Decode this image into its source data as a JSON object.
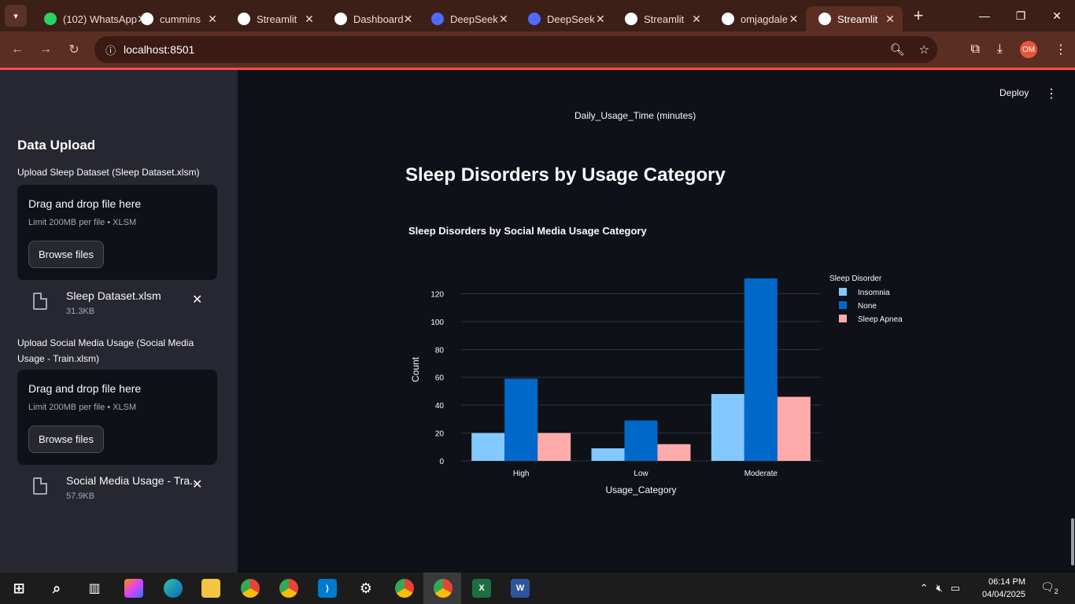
{
  "browser": {
    "tabs": [
      {
        "title": "(102) WhatsApp",
        "icon": "whatsapp-icon",
        "color": "#25d366"
      },
      {
        "title": "cummins",
        "icon": "github-icon",
        "color": "#ffffff"
      },
      {
        "title": "Streamlit",
        "icon": "streamlit-icon",
        "color": "#ffffff"
      },
      {
        "title": "Dashboard",
        "icon": "openai-icon",
        "color": "#ffffff"
      },
      {
        "title": "DeepSeek",
        "icon": "deepseek-icon",
        "color": "#4d6bfe"
      },
      {
        "title": "DeepSeek",
        "icon": "deepseek-icon",
        "color": "#4d6bfe"
      },
      {
        "title": "Streamlit",
        "icon": "streamlit-icon",
        "color": "#ffffff"
      },
      {
        "title": "omjagdale",
        "icon": "github-icon",
        "color": "#ffffff"
      },
      {
        "title": "Streamlit",
        "icon": "streamlit-icon",
        "color": "#ffffff",
        "active": true
      }
    ],
    "url": "localhost:8501",
    "profile_initials": "OM"
  },
  "sidebar": {
    "title": "Data Upload",
    "uploaders": [
      {
        "label": "Upload Sleep Dataset (Sleep Dataset.xlsm)",
        "drop_text": "Drag and drop file here",
        "limit_text": "Limit 200MB per file • XLSM",
        "button": "Browse files",
        "file_name": "Sleep Dataset.xlsm",
        "file_size": "31.3KB"
      },
      {
        "label": "Upload Social Media Usage (Social Media Usage - Train.xlsm)",
        "drop_text": "Drag and drop file here",
        "limit_text": "Limit 200MB per file • XLSM",
        "button": "Browse files",
        "file_name": "Social Media Usage - Tra...",
        "file_size": "57.9KB"
      }
    ]
  },
  "main": {
    "deploy_label": "Deploy",
    "previous_axis_caption": "Daily_Usage_Time (minutes)",
    "section_title": "Sleep Disorders by Usage Category"
  },
  "chart_data": {
    "type": "bar",
    "title": "Sleep Disorders by Social Media Usage Category",
    "xlabel": "Usage_Category",
    "ylabel": "Count",
    "categories": [
      "High",
      "Low",
      "Moderate"
    ],
    "series": [
      {
        "name": "Insomnia",
        "values": [
          20,
          9,
          48
        ],
        "color": "#83c9ff"
      },
      {
        "name": "None",
        "values": [
          59,
          29,
          131
        ],
        "color": "#0068c9"
      },
      {
        "name": "Sleep Apnea",
        "values": [
          20,
          12,
          46
        ],
        "color": "#ffabab"
      }
    ],
    "ylim": [
      0,
      131
    ],
    "yticks": [
      0,
      20,
      40,
      60,
      80,
      100,
      120
    ],
    "legend_title": "Sleep Disorder",
    "legend_position": "right",
    "grid": true
  },
  "taskbar": {
    "time": "06:14 PM",
    "date": "04/04/2025",
    "notifications": "2"
  }
}
